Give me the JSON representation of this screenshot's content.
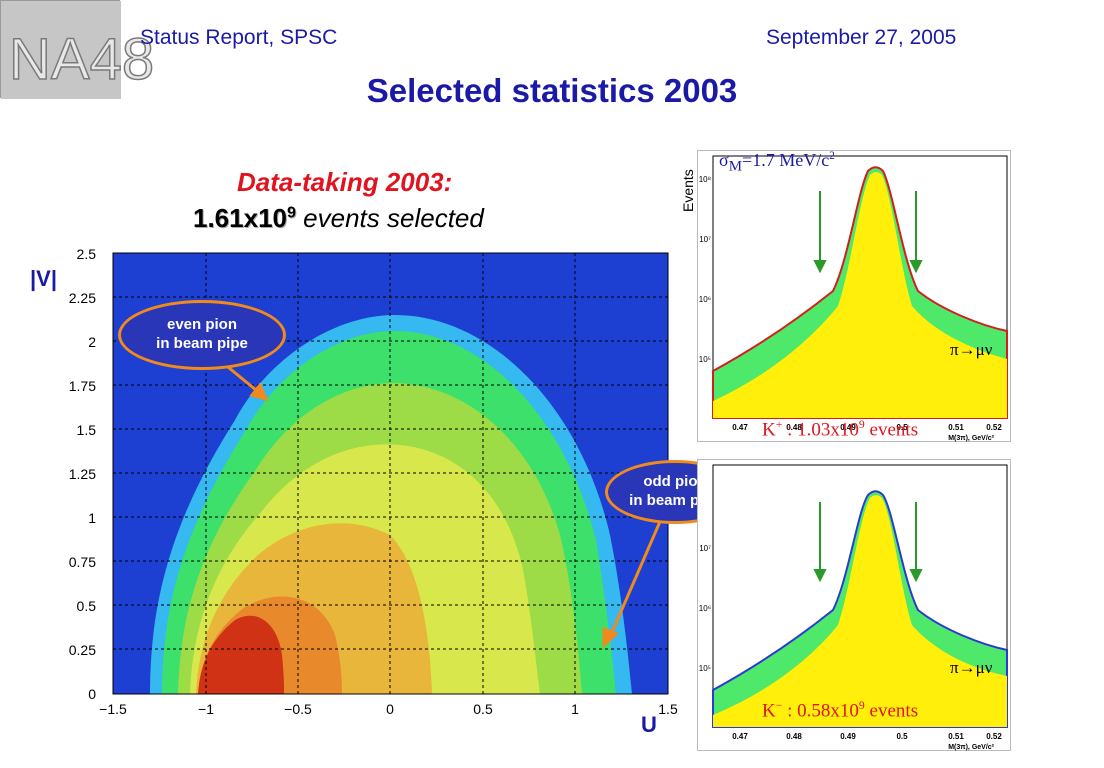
{
  "header": {
    "left": "Status Report, SPSC",
    "right": "September 27, 2005",
    "logo_text": "NA48"
  },
  "title": "Selected statistics 2003",
  "subtitle": {
    "line1": "Data-taking 2003:",
    "count_base": "1.61x10",
    "count_exp": "9",
    "line2_suffix": " events selected"
  },
  "main_plot": {
    "v_axis_label": "|V|",
    "u_axis_label": "U",
    "y_ticks": [
      "0",
      "0.25",
      "0.5",
      "0.75",
      "1",
      "1.25",
      "1.5",
      "1.75",
      "2",
      "2.25",
      "2.5"
    ],
    "x_ticks": [
      "−1.5",
      "−1",
      "−0.5",
      "0",
      "0.5",
      "1",
      "1.5"
    ],
    "even_label_1": "even pion",
    "even_label_2": "in beam pipe",
    "odd_label_1": "odd pion",
    "odd_label_2": "in beam pipe",
    "colors": {
      "background": "#1d3fd2",
      "outer": "#36b8f0",
      "mid": "#3de06a",
      "inner": "#d8e84c",
      "core": "#e88a2c",
      "peak": "#cf3214",
      "arrow": "#f08a1c"
    }
  },
  "panels": {
    "ylabel": "Events",
    "xlabel": "M(3π), GeV/c²",
    "sigma": "σ",
    "sigma_sub": "M",
    "sigma_rest": "=1.7 MeV/c",
    "sigma_exp": "2",
    "y_ticks": [
      "10⁵",
      "10⁶",
      "10⁷",
      "10⁸"
    ],
    "x_ticks": [
      "0.47",
      "0.48",
      "0.49",
      "0.5",
      "0.51",
      "0.52"
    ],
    "pimu": "π→μν",
    "kplus_prefix": "K",
    "kplus_sign": "+",
    "kplus_mid": " : 1.03x10",
    "kplus_exp": "9",
    "kplus_suffix": " events",
    "kminus_prefix": "K",
    "kminus_sign": "−",
    "kminus_mid": " : 0.58x10",
    "kminus_exp": "9",
    "kminus_suffix": " events"
  }
}
